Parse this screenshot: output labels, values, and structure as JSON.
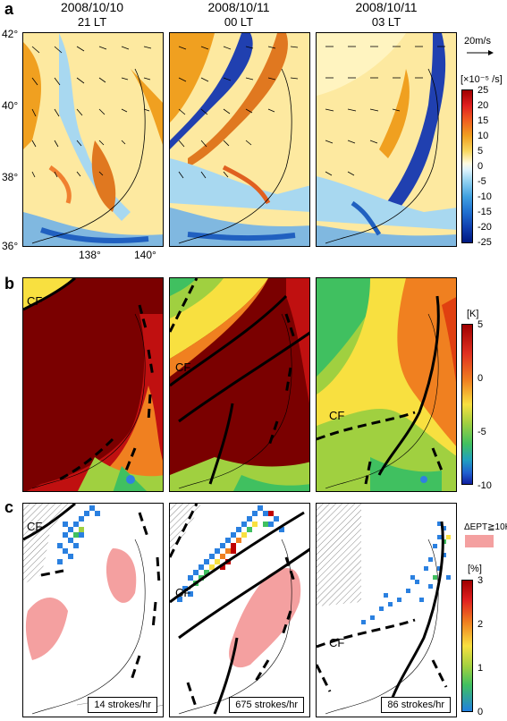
{
  "panels": {
    "a": "a",
    "b": "b",
    "c": "c"
  },
  "columns": [
    {
      "date": "2008/10/10",
      "lt": "21 LT",
      "strokes": "14 strokes/hr"
    },
    {
      "date": "2008/10/11",
      "lt": "00 LT",
      "strokes": "675 strokes/hr"
    },
    {
      "date": "2008/10/11",
      "lt": "03 LT",
      "strokes": "86 strokes/hr"
    }
  ],
  "lat_labels": [
    "42°",
    "40°",
    "38°",
    "36°"
  ],
  "lon_labels": [
    "138°",
    "140°"
  ],
  "cf_label": "CF",
  "vector_ref": "20m/s",
  "colorbar_a": {
    "unit": "[×10⁻⁵ /s]",
    "ticks": [
      "25",
      "20",
      "15",
      "10",
      "5",
      "0",
      "-5",
      "-10",
      "-15",
      "-20",
      "-25"
    ]
  },
  "colorbar_b": {
    "unit": "[K]",
    "ticks": [
      "5",
      "0",
      "-5",
      "-10"
    ]
  },
  "colorbar_c": {
    "legend": "ΔEPT≧10K",
    "unit": "[%]",
    "ticks": [
      "3",
      "2",
      "1",
      "0"
    ]
  },
  "colors": {
    "vort_pos": "#f0a020",
    "vort_neg": "#2060c0",
    "ept_warm": "#7a0000",
    "ept_mid": "#f08020",
    "ept_cool": "#40c060",
    "pink": "#f4a0a0"
  }
}
